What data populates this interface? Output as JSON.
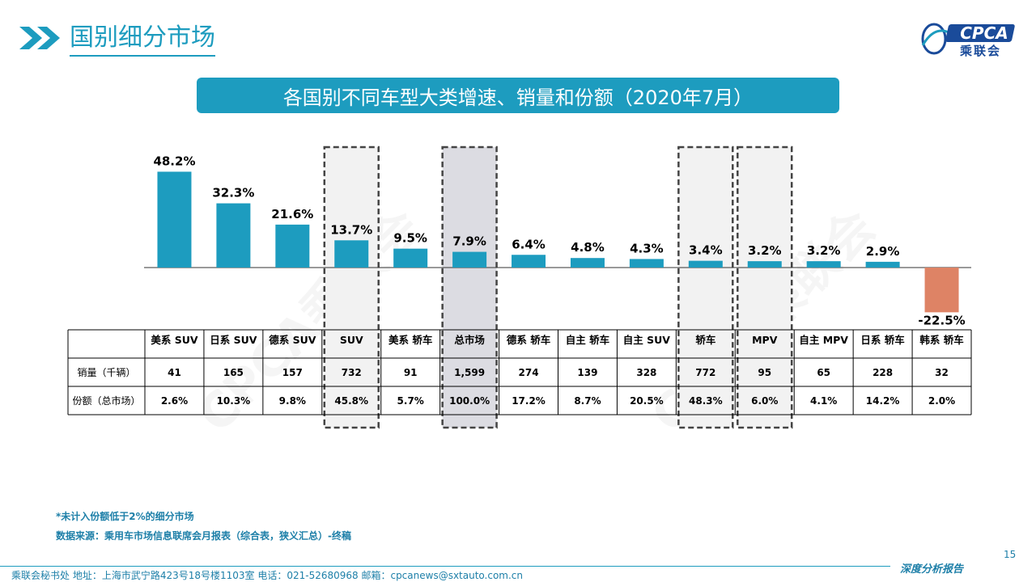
{
  "page": {
    "title": "国别细分市场",
    "banner": "各国别不同车型大类增速、销量和份额（2020年7月）",
    "logo_text": "CPCA",
    "logo_cn": "乘联会",
    "watermarks": [
      "CPCA乘联会",
      "CPCA乘联会"
    ]
  },
  "chart_data": {
    "type": "bar",
    "categories": [
      "美系 SUV",
      "日系 SUV",
      "德系 SUV",
      "SUV",
      "美系 轿车",
      "总市场",
      "德系 轿车",
      "自主 轿车",
      "自主 SUV",
      "轿车",
      "MPV",
      "自主 MPV",
      "日系 轿车",
      "韩系 轿车"
    ],
    "values": [
      48.2,
      32.3,
      21.6,
      13.7,
      9.5,
      7.9,
      6.4,
      4.8,
      4.3,
      3.4,
      3.2,
      3.2,
      2.9,
      -22.5
    ],
    "value_labels": [
      "48.2%",
      "32.3%",
      "21.6%",
      "13.7%",
      "9.5%",
      "7.9%",
      "6.4%",
      "4.8%",
      "4.3%",
      "3.4%",
      "3.2%",
      "3.2%",
      "2.9%",
      "-22.5%"
    ],
    "highlighted": [
      3,
      5,
      9,
      10
    ],
    "shaded": [
      3,
      5,
      9,
      10
    ],
    "colors": {
      "positive": "#1d9cbf",
      "negative": "#de8365",
      "highlight_fill": "#f2f2f2",
      "total_fill": "#dcdce2",
      "dash": "#444444"
    },
    "title": "",
    "xlabel": "",
    "ylabel": "",
    "grid": false
  },
  "table": {
    "row_labels": [
      "销量（千辆）",
      "份额（总市场）"
    ],
    "sales": [
      "41",
      "165",
      "157",
      "732",
      "91",
      "1,599",
      "274",
      "139",
      "328",
      "772",
      "95",
      "65",
      "228",
      "32"
    ],
    "share": [
      "2.6%",
      "10.3%",
      "9.8%",
      "45.8%",
      "5.7%",
      "100.0%",
      "17.2%",
      "8.7%",
      "20.5%",
      "48.3%",
      "6.0%",
      "4.1%",
      "14.2%",
      "2.0%"
    ]
  },
  "notes": {
    "note1": "*未计入份额低于2%的细分市场",
    "note2": "数据来源：乘用车市场信息联席会月报表（综合表，狭义汇总）-终稿"
  },
  "footer": {
    "address": "乘联会秘书处   地址：上海市武宁路423号18号楼1103室   电话：021-52680968   邮箱：cpcanews@sxtauto.com.cn",
    "report": "深度分析报告",
    "page_number": "15"
  }
}
